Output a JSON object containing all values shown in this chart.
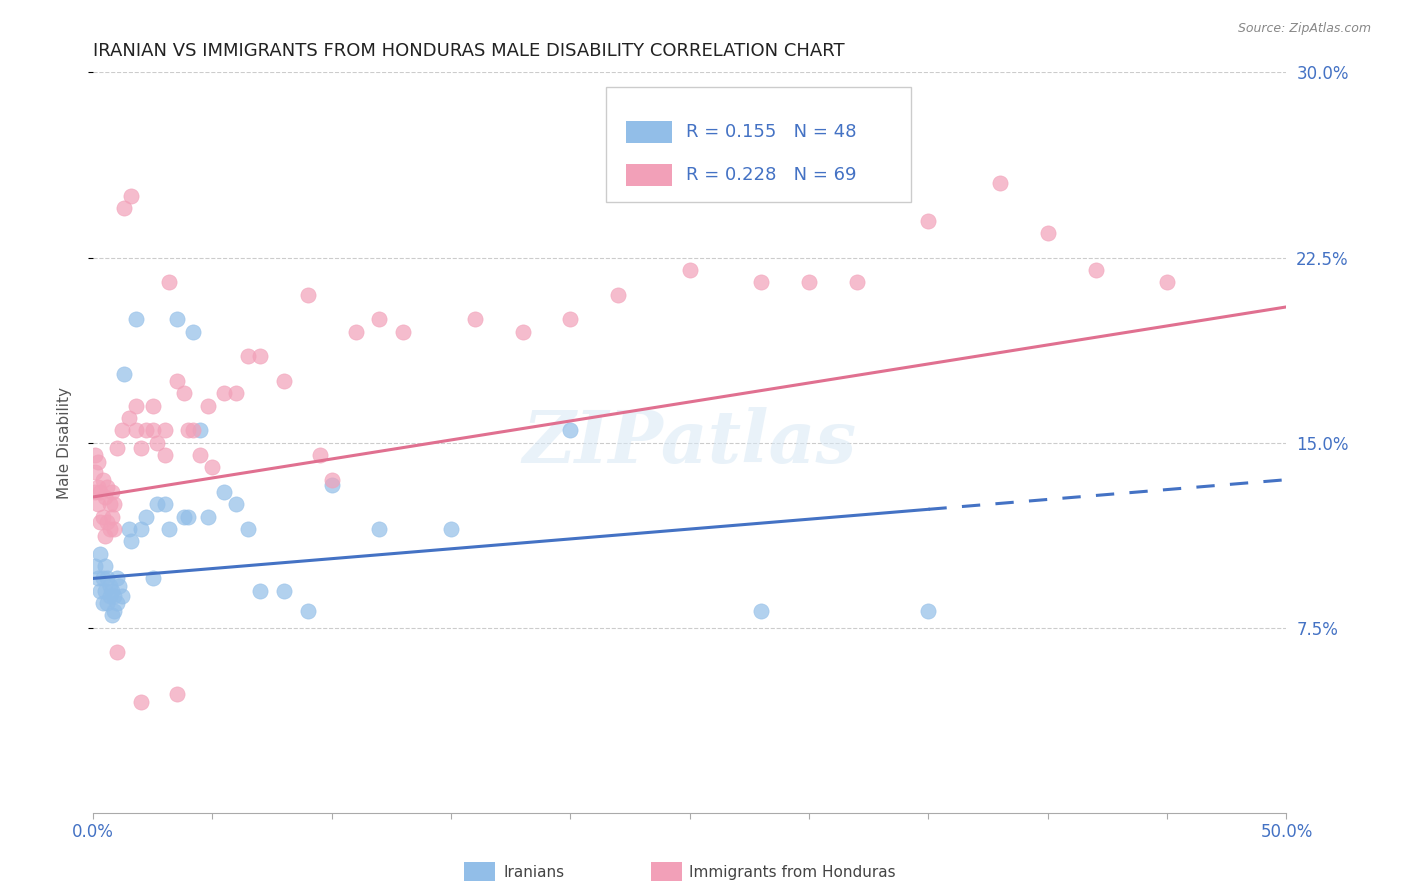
{
  "title": "IRANIAN VS IMMIGRANTS FROM HONDURAS MALE DISABILITY CORRELATION CHART",
  "source": "Source: ZipAtlas.com",
  "ylabel": "Male Disability",
  "xlim": [
    0.0,
    0.5
  ],
  "ylim": [
    0.0,
    0.3
  ],
  "ytick_values": [
    0.075,
    0.15,
    0.225,
    0.3
  ],
  "legend_R_iranian": "0.155",
  "legend_N_iranian": "48",
  "legend_R_honduras": "0.228",
  "legend_N_honduras": "69",
  "color_iranian": "#92BEE8",
  "color_honduras": "#F2A0B8",
  "color_line_iranian": "#4472C4",
  "color_line_honduras": "#E07090",
  "color_text_blue": "#4472C4",
  "watermark": "ZIPatlas",
  "iranian_x": [
    0.001,
    0.002,
    0.003,
    0.003,
    0.004,
    0.004,
    0.005,
    0.005,
    0.006,
    0.006,
    0.007,
    0.007,
    0.008,
    0.008,
    0.009,
    0.009,
    0.01,
    0.01,
    0.011,
    0.012,
    0.013,
    0.015,
    0.016,
    0.018,
    0.02,
    0.022,
    0.025,
    0.027,
    0.03,
    0.032,
    0.035,
    0.038,
    0.04,
    0.042,
    0.045,
    0.048,
    0.055,
    0.06,
    0.065,
    0.07,
    0.08,
    0.09,
    0.1,
    0.12,
    0.15,
    0.2,
    0.28,
    0.35
  ],
  "iranian_y": [
    0.1,
    0.095,
    0.09,
    0.105,
    0.085,
    0.095,
    0.09,
    0.1,
    0.085,
    0.095,
    0.088,
    0.092,
    0.08,
    0.09,
    0.082,
    0.088,
    0.085,
    0.095,
    0.092,
    0.088,
    0.178,
    0.115,
    0.11,
    0.2,
    0.115,
    0.12,
    0.095,
    0.125,
    0.125,
    0.115,
    0.2,
    0.12,
    0.12,
    0.195,
    0.155,
    0.12,
    0.13,
    0.125,
    0.115,
    0.09,
    0.09,
    0.082,
    0.133,
    0.115,
    0.115,
    0.155,
    0.082,
    0.082
  ],
  "honduras_x": [
    0.001,
    0.001,
    0.001,
    0.002,
    0.002,
    0.002,
    0.003,
    0.003,
    0.004,
    0.004,
    0.005,
    0.005,
    0.006,
    0.006,
    0.007,
    0.007,
    0.008,
    0.008,
    0.009,
    0.009,
    0.01,
    0.012,
    0.013,
    0.015,
    0.016,
    0.018,
    0.018,
    0.02,
    0.022,
    0.025,
    0.025,
    0.027,
    0.03,
    0.03,
    0.032,
    0.035,
    0.038,
    0.04,
    0.042,
    0.045,
    0.048,
    0.05,
    0.055,
    0.06,
    0.065,
    0.07,
    0.08,
    0.09,
    0.095,
    0.1,
    0.11,
    0.12,
    0.13,
    0.16,
    0.18,
    0.2,
    0.22,
    0.25,
    0.28,
    0.3,
    0.32,
    0.35,
    0.38,
    0.4,
    0.42,
    0.45,
    0.01,
    0.02,
    0.035
  ],
  "honduras_y": [
    0.13,
    0.138,
    0.145,
    0.125,
    0.132,
    0.142,
    0.118,
    0.13,
    0.12,
    0.135,
    0.112,
    0.128,
    0.118,
    0.132,
    0.115,
    0.125,
    0.12,
    0.13,
    0.115,
    0.125,
    0.148,
    0.155,
    0.245,
    0.16,
    0.25,
    0.155,
    0.165,
    0.148,
    0.155,
    0.155,
    0.165,
    0.15,
    0.145,
    0.155,
    0.215,
    0.175,
    0.17,
    0.155,
    0.155,
    0.145,
    0.165,
    0.14,
    0.17,
    0.17,
    0.185,
    0.185,
    0.175,
    0.21,
    0.145,
    0.135,
    0.195,
    0.2,
    0.195,
    0.2,
    0.195,
    0.2,
    0.21,
    0.22,
    0.215,
    0.215,
    0.215,
    0.24,
    0.255,
    0.235,
    0.22,
    0.215,
    0.065,
    0.045,
    0.048
  ]
}
